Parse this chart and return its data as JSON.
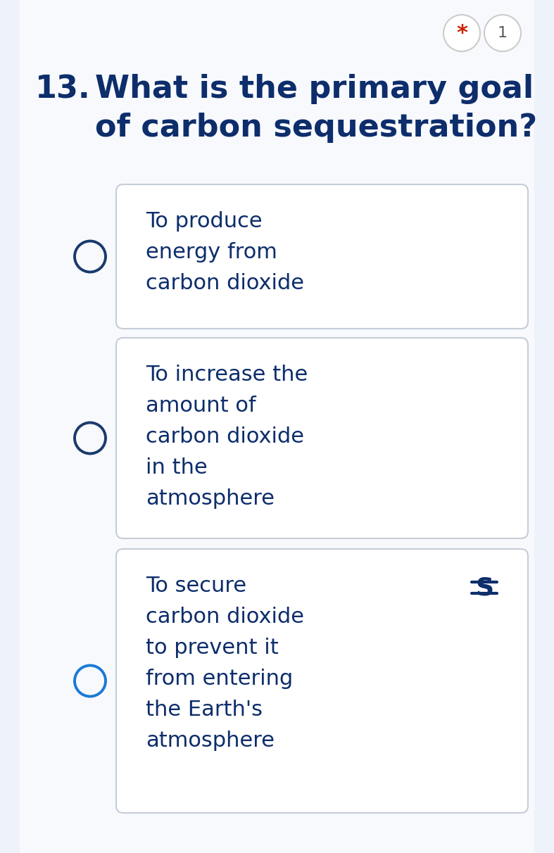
{
  "background_color": "#eef2fa",
  "inner_background": "#f7f9fd",
  "card_color": "#ffffff",
  "question_number": "13.",
  "question_text": "What is the primary goal\nof carbon sequestration?",
  "question_color": "#0d2d6b",
  "options": [
    {
      "text": "To produce\nenergy from\ncarbon dioxide",
      "circle_color": "#1a3a6b",
      "circle_filled": false,
      "strikethrough": false
    },
    {
      "text": "To increase the\namount of\ncarbon dioxide\nin the\natmosphere",
      "circle_color": "#1a3a6b",
      "circle_filled": false,
      "strikethrough": false
    },
    {
      "text": "To secure\ncarbon dioxide\nto prevent it\nfrom entering\nthe Earth's\natmosphere",
      "circle_color": "#1a7ad4",
      "circle_filled": false,
      "strikethrough": true
    }
  ],
  "star_color": "#cc2200",
  "badge_border_color": "#bbbbbb",
  "text_color": "#0d2d6b",
  "option_text_color": "#0d2d6b",
  "figsize": [
    7.87,
    12.12
  ],
  "dpi": 100
}
